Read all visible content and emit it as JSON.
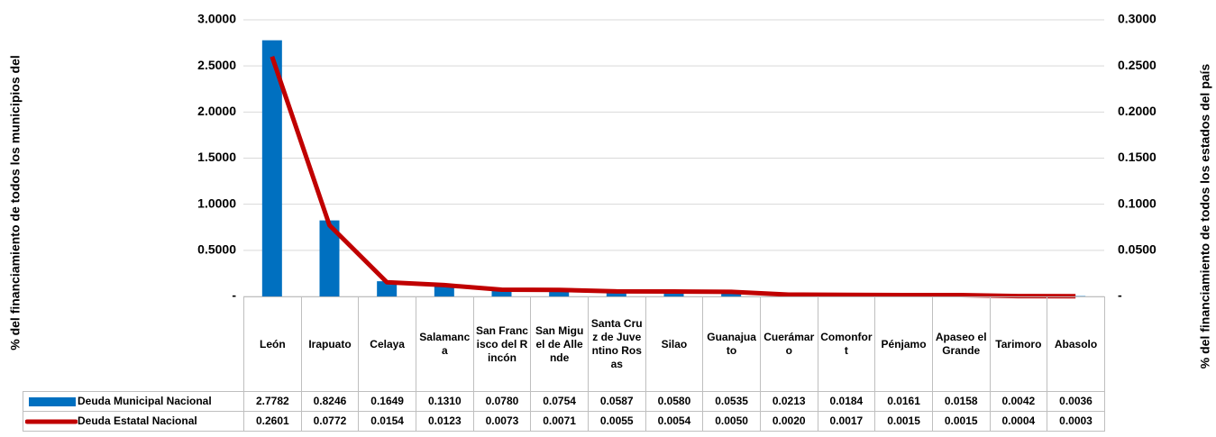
{
  "chart_data": {
    "type": "bar-line",
    "y_label": "% del financiamiento  de todos los municipios del",
    "y2_label": "% del financiamiento de todos los estados del país",
    "categories": [
      "León",
      "Irapuato",
      "Celaya",
      "Salamanca",
      "San Francisco del Rincón",
      "San Miguel de Allende",
      "Santa Cruz de Juventino Rosas",
      "Silao",
      "Guanajuato",
      "Cuerámaro",
      "Comonfort",
      "Pénjamo",
      "Apaseo el Grande",
      "Tarimoro",
      "Abasolo"
    ],
    "series": [
      {
        "name": "Deuda Municipal Nacional",
        "type": "bar",
        "color": "#0070c0",
        "values": [
          2.7782,
          0.8246,
          0.1649,
          0.131,
          0.078,
          0.0754,
          0.0587,
          0.058,
          0.0535,
          0.0213,
          0.0184,
          0.0161,
          0.0158,
          0.0042,
          0.0036
        ],
        "value_labels": [
          "2.7782",
          "0.8246",
          "0.1649",
          "0.1310",
          "0.0780",
          "0.0754",
          "0.0587",
          "0.0580",
          "0.0535",
          "0.0213",
          "0.0184",
          "0.0161",
          "0.0158",
          "0.0042",
          "0.0036"
        ]
      },
      {
        "name": "Deuda Estatal Nacional",
        "type": "line",
        "axis": "y2",
        "color": "#c00000",
        "values": [
          0.2601,
          0.0772,
          0.0154,
          0.0123,
          0.0073,
          0.0071,
          0.0055,
          0.0054,
          0.005,
          0.002,
          0.0017,
          0.0015,
          0.0015,
          0.0004,
          0.0003
        ],
        "value_labels": [
          "0.2601",
          "0.0772",
          "0.0154",
          "0.0123",
          "0.0073",
          "0.0071",
          "0.0055",
          "0.0054",
          "0.0050",
          "0.0020",
          "0.0017",
          "0.0015",
          "0.0015",
          "0.0004",
          "0.0003"
        ]
      }
    ],
    "ylim": [
      0,
      3
    ],
    "yticks": [
      {
        "value": 0,
        "label": "-"
      },
      {
        "value": 0.5,
        "label": "0.5000"
      },
      {
        "value": 1,
        "label": "1.0000"
      },
      {
        "value": 1.5,
        "label": "1.5000"
      },
      {
        "value": 2,
        "label": "2.0000"
      },
      {
        "value": 2.5,
        "label": "2.5000"
      },
      {
        "value": 3,
        "label": "3.0000"
      }
    ],
    "y2lim": [
      0,
      0.3
    ],
    "y2ticks": [
      {
        "value": 0,
        "label": "-"
      },
      {
        "value": 0.05,
        "label": "0.0500"
      },
      {
        "value": 0.1,
        "label": "0.1000"
      },
      {
        "value": 0.15,
        "label": "0.1500"
      },
      {
        "value": 0.2,
        "label": "0.2000"
      },
      {
        "value": 0.25,
        "label": "0.2500"
      },
      {
        "value": 0.3,
        "label": "0.3000"
      }
    ],
    "grid": true
  }
}
